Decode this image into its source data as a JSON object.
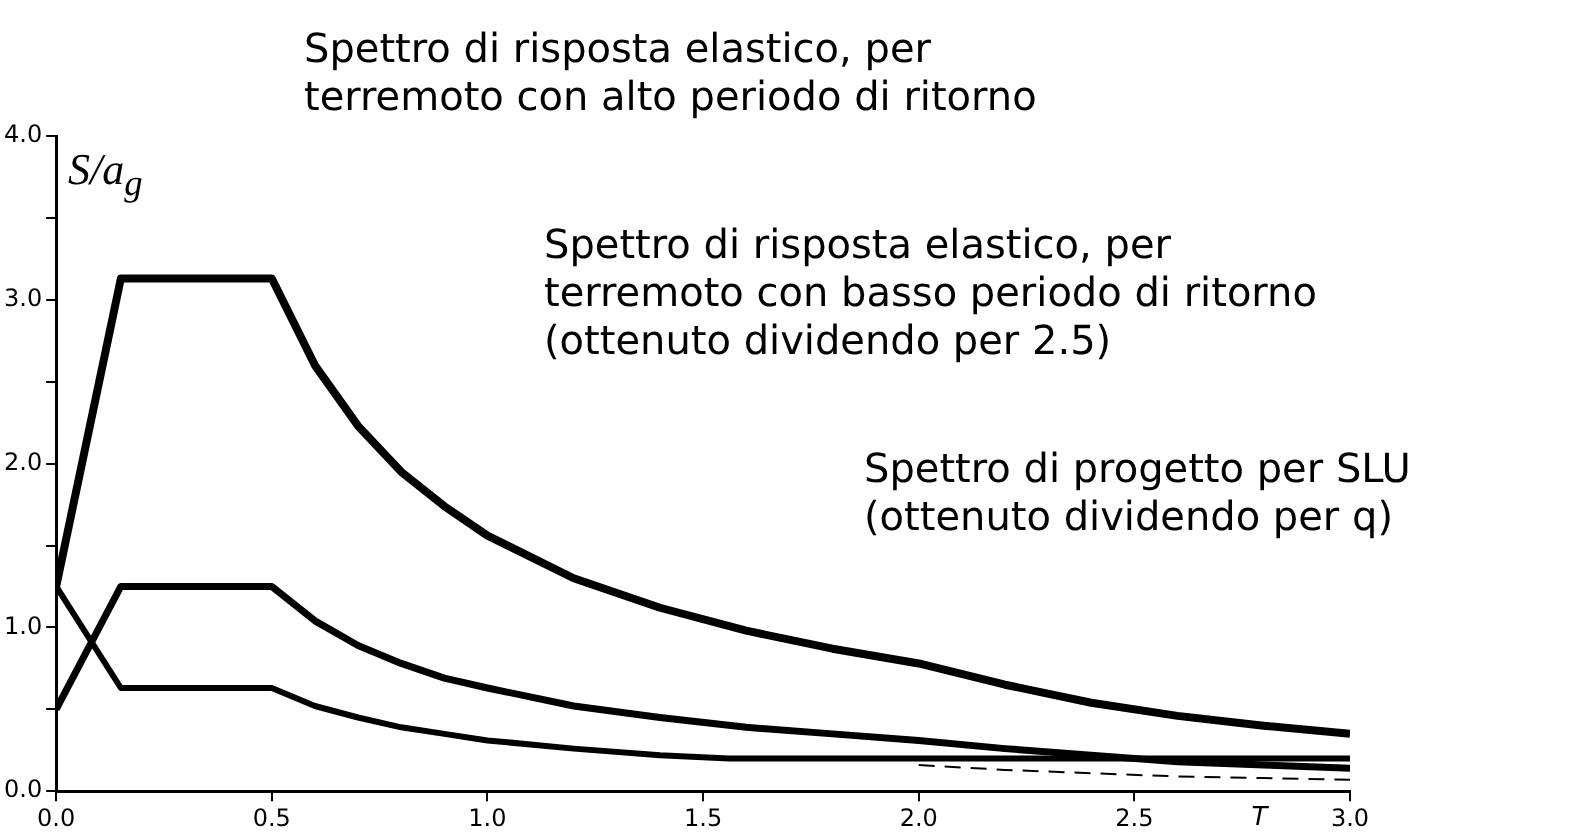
{
  "chart_data": {
    "type": "line",
    "xlabel": "T",
    "ylabel": "S/a$_{g}$",
    "xlim": [
      0,
      3
    ],
    "xticks": [
      {
        "value": 0,
        "label": "0.0"
      },
      {
        "value": 0.5,
        "label": "0.5"
      },
      {
        "value": 1,
        "label": "1.0"
      },
      {
        "value": 1.5,
        "label": "1.5"
      },
      {
        "value": 2,
        "label": "2.0"
      },
      {
        "value": 2.5,
        "label": "2.5"
      },
      {
        "value": 3,
        "label": "3.0"
      }
    ],
    "ylim": [
      0,
      4
    ],
    "yticks": [
      {
        "value": 0,
        "label": "0.0"
      },
      {
        "value": 0.5,
        "label": null
      },
      {
        "value": 1,
        "label": "1.0"
      },
      {
        "value": 1.5,
        "label": null
      },
      {
        "value": 2,
        "label": "2.0"
      },
      {
        "value": 2.5,
        "label": null
      },
      {
        "value": 3,
        "label": "3.0"
      },
      {
        "value": 3.5,
        "label": null
      },
      {
        "value": 4,
        "label": "4.0"
      }
    ],
    "grid": false,
    "legend": false,
    "marker": "none",
    "series": [
      {
        "color": "#000000",
        "line_style": "solid",
        "x": [
          0,
          0.15,
          0.5,
          0.6,
          0.7,
          0.8,
          0.9,
          1.0,
          1.2,
          1.4,
          1.6,
          1.8,
          2.0,
          2.2,
          2.4,
          2.6,
          2.8,
          3.0
        ],
        "values": [
          1.25,
          3.13,
          3.13,
          2.6,
          2.23,
          1.95,
          1.74,
          1.56,
          1.3,
          1.12,
          0.98,
          0.87,
          0.78,
          0.65,
          0.54,
          0.46,
          0.4,
          0.35
        ]
      },
      {
        "color": "#000000",
        "line_style": "solid",
        "x": [
          0,
          0.15,
          0.5,
          0.6,
          0.7,
          0.8,
          0.9,
          1.0,
          1.2,
          1.4,
          1.6,
          1.8,
          2.0,
          2.2,
          2.4,
          2.6,
          2.8,
          3.0
        ],
        "values": [
          0.5,
          1.25,
          1.25,
          1.04,
          0.89,
          0.78,
          0.69,
          0.63,
          0.52,
          0.45,
          0.39,
          0.35,
          0.31,
          0.26,
          0.22,
          0.18,
          0.16,
          0.14
        ]
      },
      {
        "color": "#000000",
        "line_style": "solid",
        "x": [
          0,
          0.15,
          0.5,
          0.6,
          0.7,
          0.8,
          0.9,
          1.0,
          1.2,
          1.4,
          1.56,
          2.0,
          2.5,
          3.0
        ],
        "values": [
          1.25,
          0.63,
          0.63,
          0.52,
          0.45,
          0.39,
          0.35,
          0.31,
          0.26,
          0.22,
          0.2,
          0.2,
          0.2,
          0.2
        ]
      },
      {
        "color": "#000000",
        "line_style": "dashed",
        "x": [
          2.0,
          2.2,
          2.4,
          2.6,
          2.8,
          3.0
        ],
        "values": [
          0.16,
          0.13,
          0.11,
          0.09,
          0.08,
          0.07
        ]
      }
    ],
    "annotations": [
      "Spettro di risposta elastico, per\nterremoto con alto periodo di ritorno",
      "Spettro di risposta elastico, per\nterremoto con basso periodo di ritorno\n(ottenuto dividendo per 2.5)",
      "Spettro di progetto per SLU\n(ottenuto dividendo per q)"
    ]
  }
}
